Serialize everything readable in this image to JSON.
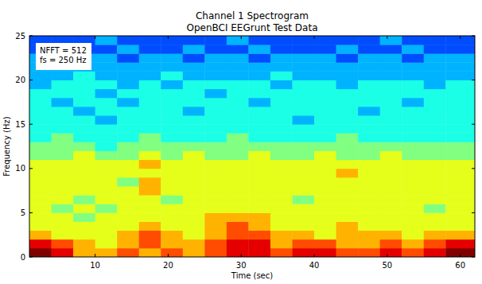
{
  "chart_data": {
    "type": "heatmap",
    "title": "Channel 1 Spectrogram",
    "subtitle": "OpenBCI EEGrunt Test Data",
    "x_label": "Time (sec)",
    "y_label": "Frequency (Hz)",
    "annotations": [
      "NFFT = 512",
      "fs = 250 Hz"
    ],
    "xlim": [
      1,
      62
    ],
    "ylim": [
      0,
      25
    ],
    "xticks": [
      10,
      20,
      30,
      40,
      50,
      60
    ],
    "yticks": [
      0,
      5,
      10,
      15,
      20,
      25
    ],
    "color": "jet",
    "color_range": [
      0,
      10
    ],
    "x_edges": [
      1,
      4,
      7,
      10,
      13,
      16,
      19,
      22,
      25,
      28,
      31,
      34,
      37,
      40,
      43,
      46,
      49,
      52,
      55,
      58,
      62
    ],
    "y_edges": [
      0,
      1,
      2,
      3,
      4,
      5,
      6,
      7,
      8,
      9,
      10,
      11,
      12,
      13,
      14,
      15,
      16,
      17,
      18,
      19,
      20,
      21,
      22,
      23,
      24,
      25
    ],
    "cells": [
      [
        10,
        9,
        7,
        7,
        8,
        7,
        8,
        7,
        8,
        9,
        9,
        8,
        9,
        9,
        8,
        8,
        9,
        8,
        9,
        10
      ],
      [
        9,
        8,
        7,
        6,
        7,
        8,
        7,
        7,
        8,
        9,
        9,
        7,
        8,
        8,
        7,
        7,
        8,
        7,
        8,
        9
      ],
      [
        7,
        6,
        6,
        6,
        7,
        8,
        7,
        6,
        7,
        8,
        8,
        7,
        7,
        6,
        7,
        7,
        7,
        6,
        7,
        7
      ],
      [
        6,
        6,
        6,
        6,
        6,
        7,
        6,
        6,
        7,
        8,
        7,
        6,
        6,
        6,
        7,
        6,
        6,
        6,
        6,
        6
      ],
      [
        6,
        6,
        5,
        6,
        6,
        6,
        6,
        6,
        7,
        7,
        7,
        6,
        6,
        6,
        6,
        6,
        6,
        6,
        6,
        6
      ],
      [
        6,
        5,
        6,
        5,
        6,
        6,
        6,
        6,
        6,
        6,
        6,
        6,
        6,
        6,
        6,
        6,
        6,
        6,
        5,
        6
      ],
      [
        6,
        6,
        5,
        6,
        6,
        6,
        5,
        6,
        6,
        6,
        6,
        6,
        5,
        6,
        6,
        6,
        6,
        6,
        6,
        6
      ],
      [
        6,
        6,
        6,
        6,
        6,
        7,
        6,
        6,
        6,
        6,
        6,
        6,
        6,
        6,
        6,
        6,
        6,
        6,
        6,
        6
      ],
      [
        6,
        6,
        6,
        6,
        5,
        7,
        6,
        6,
        6,
        6,
        6,
        6,
        6,
        6,
        6,
        6,
        6,
        6,
        6,
        6
      ],
      [
        6,
        6,
        6,
        6,
        6,
        6,
        6,
        6,
        6,
        6,
        6,
        6,
        6,
        6,
        7,
        6,
        6,
        6,
        6,
        6
      ],
      [
        6,
        6,
        6,
        6,
        6,
        7,
        6,
        6,
        6,
        6,
        6,
        6,
        6,
        6,
        6,
        6,
        6,
        6,
        6,
        6
      ],
      [
        5,
        5,
        6,
        5,
        5,
        6,
        5,
        6,
        5,
        5,
        6,
        5,
        5,
        6,
        5,
        5,
        6,
        5,
        5,
        5
      ],
      [
        5,
        5,
        5,
        4,
        5,
        5,
        5,
        5,
        5,
        5,
        5,
        5,
        5,
        5,
        5,
        5,
        5,
        5,
        5,
        5
      ],
      [
        4,
        5,
        4,
        4,
        4,
        5,
        4,
        4,
        4,
        5,
        4,
        4,
        4,
        4,
        5,
        4,
        4,
        4,
        4,
        4
      ],
      [
        4,
        4,
        4,
        4,
        4,
        4,
        4,
        4,
        4,
        4,
        4,
        4,
        4,
        4,
        4,
        4,
        4,
        4,
        4,
        4
      ],
      [
        4,
        4,
        4,
        3,
        4,
        4,
        4,
        4,
        4,
        4,
        4,
        4,
        3,
        4,
        4,
        4,
        4,
        4,
        4,
        4
      ],
      [
        4,
        4,
        3,
        4,
        4,
        4,
        4,
        3,
        4,
        4,
        4,
        4,
        4,
        4,
        4,
        3,
        4,
        4,
        4,
        4
      ],
      [
        4,
        3,
        4,
        4,
        3,
        4,
        4,
        4,
        4,
        4,
        3,
        4,
        4,
        4,
        4,
        4,
        4,
        3,
        4,
        4
      ],
      [
        4,
        4,
        4,
        3,
        4,
        4,
        4,
        4,
        3,
        4,
        4,
        4,
        4,
        4,
        4,
        4,
        4,
        4,
        4,
        4
      ],
      [
        3,
        4,
        4,
        4,
        3,
        4,
        3,
        4,
        4,
        4,
        4,
        3,
        4,
        4,
        3,
        4,
        4,
        4,
        3,
        4
      ],
      [
        3,
        3,
        4,
        3,
        3,
        3,
        4,
        3,
        3,
        3,
        3,
        4,
        3,
        3,
        3,
        3,
        3,
        3,
        3,
        3
      ],
      [
        3,
        3,
        3,
        3,
        3,
        3,
        3,
        3,
        3,
        3,
        3,
        3,
        3,
        3,
        3,
        3,
        3,
        3,
        3,
        3
      ],
      [
        3,
        2,
        3,
        3,
        2,
        3,
        3,
        2,
        3,
        3,
        2,
        3,
        3,
        3,
        2,
        3,
        3,
        2,
        3,
        3
      ],
      [
        2,
        3,
        2,
        2,
        3,
        2,
        2,
        3,
        2,
        2,
        3,
        2,
        2,
        2,
        3,
        2,
        2,
        3,
        2,
        2
      ],
      [
        2,
        2,
        2,
        3,
        2,
        2,
        2,
        2,
        2,
        3,
        2,
        2,
        2,
        2,
        2,
        2,
        3,
        2,
        2,
        2
      ]
    ]
  }
}
